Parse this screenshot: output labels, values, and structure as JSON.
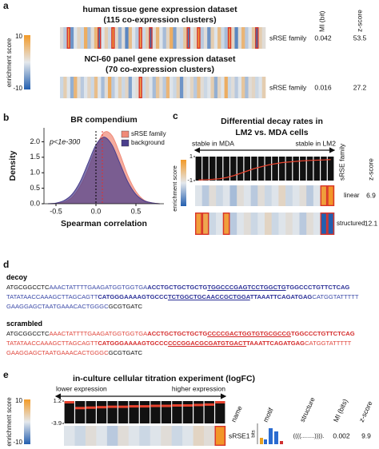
{
  "panel_labels": [
    "a",
    "b",
    "c",
    "d",
    "e"
  ],
  "panel_a": {
    "headers": [
      "MI (bit)",
      "z-score"
    ],
    "colorbar": {
      "label": "enrichment score",
      "ticks": [
        10,
        -10
      ]
    },
    "datasets": [
      {
        "title": [
          "human tissue gene expression dataset",
          "(115 co-expression clusters)"
        ],
        "row": "sRSE family",
        "mi": 0.042,
        "z": 53.5,
        "values": [
          1,
          -2,
          8,
          -6,
          0,
          2,
          -1,
          7,
          -3,
          1,
          6,
          -8,
          0,
          3,
          -1,
          9,
          2,
          -4,
          1,
          -7,
          5,
          0,
          -2,
          8,
          -1,
          3,
          -9,
          1,
          6,
          0,
          -3,
          2,
          7,
          -5,
          1,
          -1,
          4,
          -8,
          0,
          2,
          9,
          -2,
          1,
          -6,
          3,
          0,
          5,
          -1,
          -3,
          8,
          2,
          -7,
          1,
          6,
          -2,
          0,
          4,
          -9,
          3,
          1
        ]
      },
      {
        "title": [
          "NCI-60 panel gene expression dataset",
          "(70 co-expression clusters)"
        ],
        "row": "sRSE family",
        "mi": 0.016,
        "z": 27.2,
        "values": [
          -1,
          3,
          0,
          -4,
          6,
          1,
          -2,
          0,
          2,
          -1,
          5,
          0,
          -3,
          1,
          7,
          -2,
          0,
          3,
          -1,
          2,
          -5,
          0,
          1,
          8,
          -1,
          2,
          0,
          -3,
          4,
          1,
          -2,
          6,
          0,
          -1,
          3,
          -6,
          1,
          0,
          2,
          -2,
          5,
          1,
          -1,
          0,
          3,
          -4,
          2,
          0,
          7,
          -1,
          1,
          -2,
          0,
          4,
          -3,
          1,
          2,
          -1,
          0,
          3
        ]
      }
    ]
  },
  "chart_data": [
    {
      "type": "line",
      "title": "BR compendium",
      "xlabel": "Spearman correlation",
      "ylabel": "Density",
      "annotation": "p<1e-300",
      "legend": "upper right",
      "x": [
        -0.6,
        -0.5,
        -0.4,
        -0.3,
        -0.2,
        -0.1,
        0,
        0.1,
        0.2,
        0.3,
        0.4,
        0.5,
        0.6,
        0.7,
        0.8
      ],
      "series": [
        {
          "name": "sRSE family",
          "color": "#f08b78",
          "values": [
            0,
            0.01,
            0.05,
            0.2,
            0.55,
            1.1,
            1.8,
            2.3,
            2.2,
            1.6,
            0.9,
            0.4,
            0.12,
            0.03,
            0
          ]
        },
        {
          "name": "background",
          "color": "#4b3f8c",
          "values": [
            0,
            0.02,
            0.1,
            0.3,
            0.7,
            1.3,
            1.9,
            2.15,
            1.9,
            1.3,
            0.7,
            0.3,
            0.1,
            0.03,
            0
          ]
        }
      ],
      "reference_lines": [
        {
          "value": 0,
          "color": "#000000"
        },
        {
          "value": 0.08,
          "color": "#e03030"
        }
      ],
      "xlim": [
        -0.65,
        0.85
      ],
      "ylim": [
        0,
        2.45
      ],
      "xticks": [
        -0.5,
        {
          "value": 0,
          "label": "0.0"
        },
        0.5
      ],
      "yticks": [
        {
          "value": 0,
          "label": "0.0"
        },
        0.5,
        {
          "value": 1,
          "label": "1.0"
        },
        1.5,
        {
          "value": 2,
          "label": "2.0"
        }
      ]
    },
    {
      "type": "line",
      "title": [
        "Differential decay rates in",
        "LM2 vs. MDA cells"
      ],
      "annotations": [
        "stable in MDA",
        "stable in LM2"
      ],
      "ylim": [
        -1,
        1
      ],
      "yticks": [
        1,
        -1
      ],
      "series": [
        {
          "color": "#e8432e",
          "values": [
            -0.95,
            -0.93,
            -0.9,
            -0.85,
            -0.75,
            -0.6,
            -0.4,
            -0.2,
            0,
            0.15,
            0.3,
            0.4,
            0.5,
            0.55,
            0.6,
            0.65,
            0.68,
            0.7,
            0.72,
            0.75
          ]
        }
      ]
    },
    {
      "type": "bar",
      "title": "in-culture cellular titration experiment (logFC)",
      "annotations": [
        "lower expression",
        "higher expression"
      ],
      "ylim": [
        -3.9,
        1.2
      ],
      "yticks": [
        1.2,
        -3.9
      ],
      "color": "#e8432e",
      "values": [
        1.1,
        -0.4,
        -0.3,
        -0.2,
        -0.1,
        -0.1,
        0,
        0,
        0.1,
        0.1,
        0.2,
        0.2,
        0.3,
        0.4,
        1.1
      ]
    }
  ],
  "panel_c": {
    "colorbar_label": "enrichment score",
    "headers": [
      "sRSE family",
      "z-score"
    ],
    "rows": [
      {
        "name": "linear",
        "z": 6.9,
        "values": [
          0,
          -2,
          1,
          -1,
          0,
          -3,
          1,
          0,
          -2,
          1,
          -1,
          0,
          2,
          -1,
          0,
          1,
          -2,
          0,
          9,
          10
        ]
      },
      {
        "name": "structured",
        "z": 12.1,
        "values": [
          9,
          8,
          -1,
          0,
          9,
          -2,
          0,
          1,
          -1,
          0,
          2,
          -1,
          0,
          1,
          0,
          -2,
          1,
          0,
          -10,
          -10
        ]
      }
    ]
  },
  "panel_d": {
    "decoy": {
      "label": "decoy",
      "lines": [
        [
          "ATGCGGCCTC",
          "AAACTATTTTGAAGATGGTGGTGA",
          "ACCTGCTGCTGCTG",
          "TGGCCCGAGTCCTGGCTG",
          "TGGCCCTGTTCTCAG"
        ],
        [
          "TATATAACCAAAGCTTAGCAGTT",
          "CATGGGAAAAGTGCCC",
          "TCTGGCTGCAACCGCTGGA",
          "TTAAATTCAGATGAG",
          "CATGGTATTTTT"
        ],
        [
          "GAAGGAGCTAATGAAACACTGGGC",
          "GCGTGATC"
        ]
      ]
    },
    "scrambled": {
      "label": "scrambled",
      "lines": [
        [
          "ATGCGGCCTC",
          "AAACTATTTTGAAGATGGTGGTGA",
          "ACCTGCTGCTGCTG",
          "CCCCGACTGGTGTGCGCCG",
          "TGGCCCTGTTCTCAG"
        ],
        [
          "TATATAACCAAAGCTTAGCAGTT",
          "CATGGGAAAAGTGCCC",
          "CCCGGACGCGATGTGACT",
          "TAAATTCAGATGAG",
          "CATGGTATTTTT"
        ],
        [
          "GAAGGAGCTAATGAAACACTGGGC",
          "GCGTGATC"
        ]
      ]
    }
  },
  "panel_e": {
    "colorbar": {
      "label": "enrichment score",
      "ticks": [
        10,
        -10
      ]
    },
    "headers": [
      "name",
      "motif",
      "structure",
      "MI (bits)",
      "z-score"
    ],
    "motif_axis": "bits",
    "row": {
      "name": "sRSE1",
      "structure": "((((........)))).",
      "mi": 0.002,
      "z": 9.9,
      "values": [
        0,
        -1,
        1,
        0,
        -2,
        1,
        0,
        -1,
        0,
        1,
        -1,
        0,
        2,
        1,
        10
      ]
    }
  }
}
